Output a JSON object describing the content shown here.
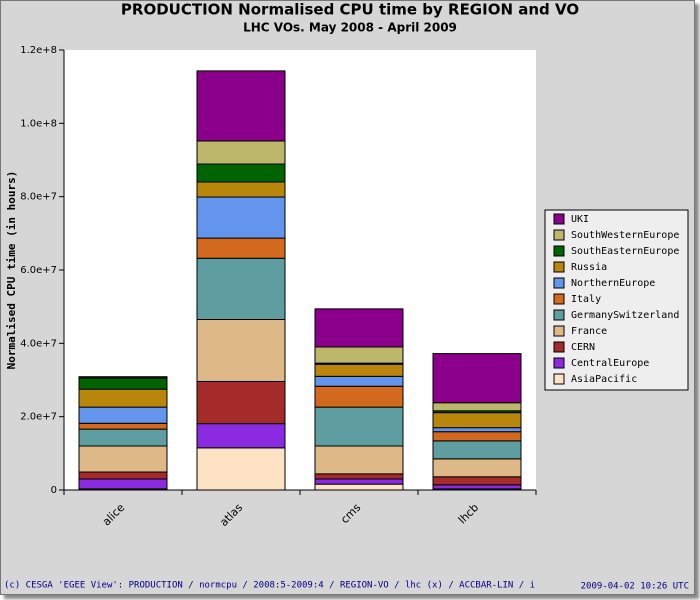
{
  "chart_data": {
    "type": "bar",
    "stacked": true,
    "title": "PRODUCTION Normalised CPU time by REGION and VO",
    "subtitle": "LHC VOs. May 2008 - April 2009",
    "y_label": "Normalised CPU time (in hours)",
    "footer_left": "(c) CESGA 'EGEE View': PRODUCTION / normcpu / 2008:5-2009:4 / REGION-VO / lhc (x) / ACCBAR-LIN / i",
    "footer_right": "2009-04-02 10:26 UTC",
    "categories": [
      "alice",
      "atlas",
      "cms",
      "lhcb"
    ],
    "ylim": [
      0,
      120000000
    ],
    "yticks": [
      0,
      {
        "value": 20000000,
        "label": "2.0e+7"
      },
      {
        "value": 40000000,
        "label": "4.0e+7"
      },
      {
        "value": 60000000,
        "label": "6.0e+7"
      },
      {
        "value": 80000000,
        "label": "8.0e+7"
      },
      {
        "value": 100000000,
        "label": "1.0e+8"
      },
      {
        "value": 120000000,
        "label": "1.2e+8"
      }
    ],
    "series": [
      {
        "name": "AsiaPacific",
        "color": "#fde2c4",
        "values": [
          300000,
          11500000,
          1600000,
          300000
        ]
      },
      {
        "name": "CentralEurope",
        "color": "#8a2be2",
        "values": [
          2700000,
          6600000,
          1400000,
          1100000
        ]
      },
      {
        "name": "CERN",
        "color": "#a52a2a",
        "values": [
          1900000,
          11500000,
          1400000,
          2200000
        ]
      },
      {
        "name": "France",
        "color": "#deb887",
        "values": [
          7100000,
          16900000,
          7600000,
          4900000
        ]
      },
      {
        "name": "GermanySwitzerland",
        "color": "#5f9ea0",
        "values": [
          4600000,
          16700000,
          10600000,
          4900000
        ]
      },
      {
        "name": "Italy",
        "color": "#d2691e",
        "values": [
          1600000,
          5500000,
          5700000,
          2500000
        ]
      },
      {
        "name": "NorthernEurope",
        "color": "#6495ed",
        "values": [
          4400000,
          11200000,
          2700000,
          1100000
        ]
      },
      {
        "name": "Russia",
        "color": "#b8860b",
        "values": [
          4900000,
          4100000,
          3300000,
          4100000
        ]
      },
      {
        "name": "SouthEasternEurope",
        "color": "#006400",
        "values": [
          3000000,
          4900000,
          300000,
          500000
        ]
      },
      {
        "name": "SouthWesternEurope",
        "color": "#bdb76b",
        "values": [
          300000,
          6300000,
          4400000,
          2200000
        ]
      },
      {
        "name": "UKI",
        "color": "#8b008b",
        "values": [
          100000,
          19100000,
          10400000,
          13400000
        ]
      }
    ]
  }
}
